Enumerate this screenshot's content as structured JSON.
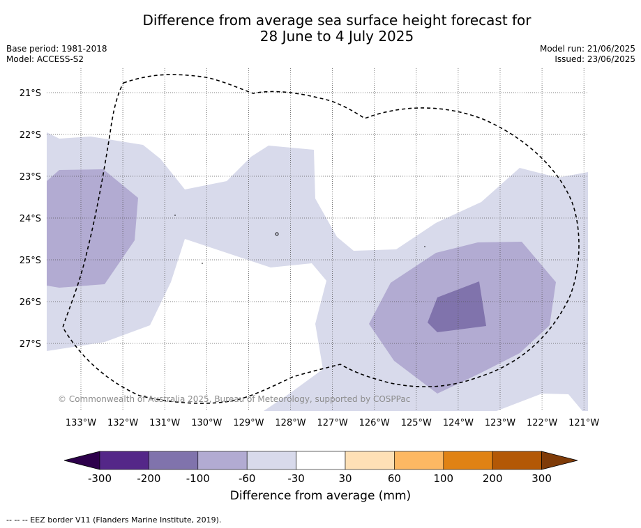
{
  "title_line1": "Difference from average sea surface height forecast for",
  "title_line2": "28 June to 4 July 2025",
  "base_period": "Base period: 1981-2018",
  "model": "Model: ACCESS-S2",
  "model_run": "Model run: 21/06/2025",
  "issued": "Issued: 23/06/2025",
  "copyright": "© Commonwealth of Australia 2025, Bureau of Meteorology, supported by COSPPac",
  "lon_ticks": [
    "133°W",
    "132°W",
    "131°W",
    "130°W",
    "129°W",
    "128°W",
    "127°W",
    "126°W",
    "125°W",
    "124°W",
    "123°W",
    "122°W",
    "121°W"
  ],
  "lat_ticks": [
    "21°S",
    "22°S",
    "23°S",
    "24°S",
    "25°S",
    "26°S",
    "27°S"
  ],
  "colorbar": {
    "label": "Difference from average (mm)",
    "ticks": [
      "-300",
      "-200",
      "-100",
      "-60",
      "-30",
      "30",
      "60",
      "100",
      "200",
      "300"
    ],
    "colors": [
      "#542788",
      "#8073ac",
      "#b2abd2",
      "#d8daeb",
      "#ffffff",
      "#fee0b6",
      "#fdb863",
      "#e08214",
      "#b35806"
    ],
    "under_color": "#2d004b",
    "over_color": "#7f3b08"
  },
  "footer": "--  --  -- EEZ border V11 (Flanders Marine Institute, 2019)."
}
